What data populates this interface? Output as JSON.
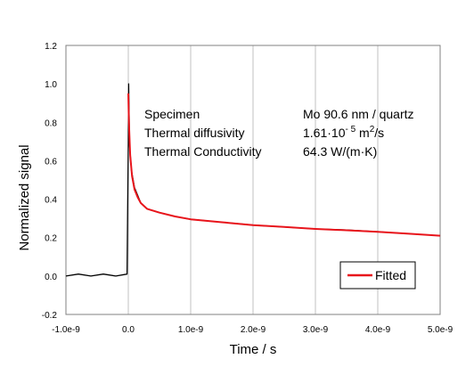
{
  "chart_data": {
    "type": "line",
    "xlabel": "Time  / s",
    "ylabel": "Normalized  signal",
    "xlim": [
      -1e-09,
      5e-09
    ],
    "ylim": [
      -0.2,
      1.2
    ],
    "x_ticks": [
      -1e-09,
      0.0,
      1e-09,
      2e-09,
      3e-09,
      4e-09,
      5e-09
    ],
    "x_tick_labels": [
      "-1.0e-9",
      "0.0",
      "1.0e-9",
      "2.0e-9",
      "3.0e-9",
      "4.0e-9",
      "5.0e-9"
    ],
    "y_ticks": [
      -0.2,
      0.0,
      0.2,
      0.4,
      0.6,
      0.8,
      1.0,
      1.2
    ],
    "y_tick_labels": [
      "-0.2",
      "0.0",
      "0.2",
      "0.4",
      "0.6",
      "0.8",
      "1.0",
      "1.2"
    ],
    "grid": "vertical",
    "legend_position": "bottom-right",
    "annotations": [
      {
        "label": "Specimen",
        "value": "Mo 90.6 nm / quartz"
      },
      {
        "label": "Thermal  diffusivity",
        "value_mantissa": "1.61·10",
        "value_exp": "- 5",
        "value_unit": " m",
        "value_unit_exp": "2",
        "value_tail": "/s"
      },
      {
        "label": "Thermal  Conductivity",
        "value": "64.3 W/(m·K)"
      }
    ],
    "series": [
      {
        "name": "",
        "color": "#000000",
        "x": [
          -1e-09,
          -8e-10,
          -6e-10,
          -4e-10,
          -2e-10,
          -2e-11,
          0.0,
          5e-12,
          2e-11,
          5e-11,
          1e-10,
          2e-10,
          3e-10,
          5e-10,
          7.5e-10,
          1e-09,
          1.5e-09,
          2e-09,
          2.5e-09,
          3e-09,
          3.5e-09,
          4e-09,
          4.5e-09,
          5e-09
        ],
        "y": [
          0.0,
          0.01,
          0.0,
          0.01,
          0.0,
          0.01,
          0.7,
          1.0,
          0.68,
          0.55,
          0.46,
          0.38,
          0.35,
          0.33,
          0.31,
          0.295,
          0.28,
          0.265,
          0.255,
          0.245,
          0.24,
          0.23,
          0.22,
          0.21
        ]
      },
      {
        "name": "Fitted",
        "color": "#e8141b",
        "x": [
          0.0,
          1e-11,
          3e-11,
          6e-11,
          1e-10,
          1.5e-10,
          2e-10,
          3e-10,
          5e-10,
          7.5e-10,
          1e-09,
          1.5e-09,
          2e-09,
          2.5e-09,
          3e-09,
          3.5e-09,
          4e-09,
          4.5e-09,
          5e-09
        ],
        "y": [
          0.95,
          0.8,
          0.63,
          0.52,
          0.45,
          0.41,
          0.38,
          0.35,
          0.33,
          0.31,
          0.295,
          0.28,
          0.265,
          0.255,
          0.245,
          0.238,
          0.23,
          0.22,
          0.21
        ]
      }
    ]
  }
}
